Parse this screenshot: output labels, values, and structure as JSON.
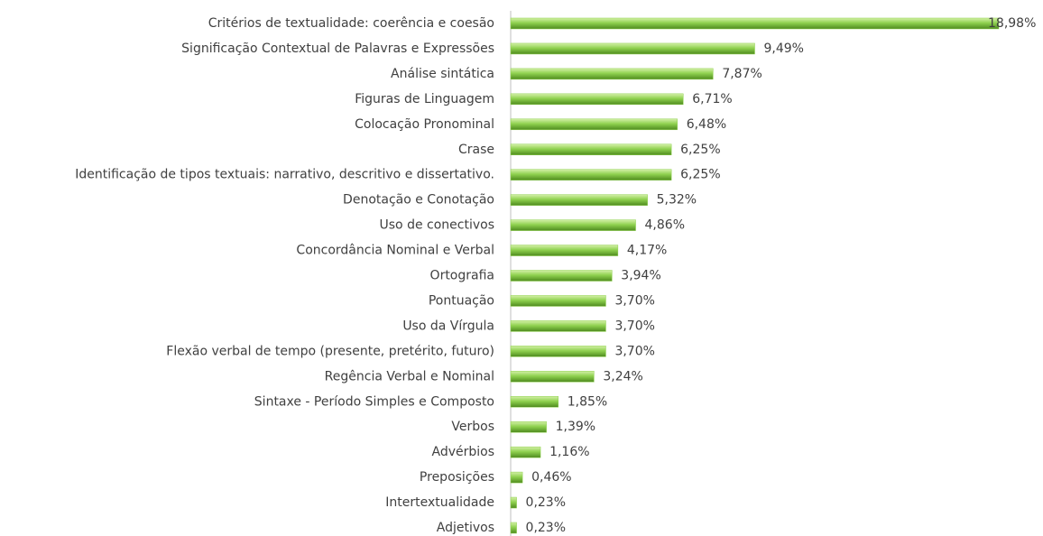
{
  "chart_data": {
    "type": "bar",
    "orientation": "horizontal",
    "color": "#8fd14f",
    "categories": [
      "Critérios de textualidade: coerência e coesão",
      "Significação Contextual de Palavras e Expressões",
      "Análise sintática",
      "Figuras de Linguagem",
      "Colocação Pronominal",
      "Crase",
      "Identificação de tipos textuais: narrativo, descritivo e dissertativo.",
      "Denotação e Conotação",
      "Uso de conectivos",
      "Concordância Nominal e Verbal",
      "Ortografia",
      "Pontuação",
      "Uso da Vírgula",
      "Flexão verbal de tempo (presente, pretérito, futuro)",
      "Regência Verbal e Nominal",
      "Sintaxe - Período Simples e Composto",
      "Verbos",
      "Advérbios",
      "Preposições",
      "Intertextualidade",
      "Adjetivos"
    ],
    "values": [
      18.98,
      9.49,
      7.87,
      6.71,
      6.48,
      6.25,
      6.25,
      5.32,
      4.86,
      4.17,
      3.94,
      3.7,
      3.7,
      3.7,
      3.24,
      1.85,
      1.39,
      1.16,
      0.46,
      0.23,
      0.23
    ],
    "value_labels": [
      "18,98%",
      "9,49%",
      "7,87%",
      "6,71%",
      "6,48%",
      "6,25%",
      "6,25%",
      "5,32%",
      "4,86%",
      "4,17%",
      "3,94%",
      "3,70%",
      "3,70%",
      "3,70%",
      "3,24%",
      "1,85%",
      "1,39%",
      "1,16%",
      "0,46%",
      "0,23%",
      "0,23%"
    ]
  }
}
